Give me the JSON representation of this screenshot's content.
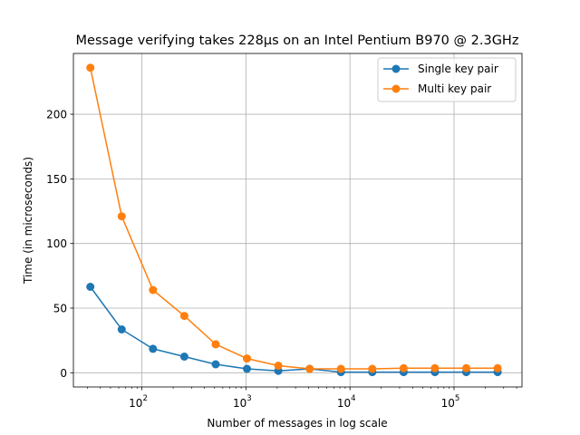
{
  "chart_data": {
    "type": "line",
    "title": "Message verifying takes 228µs on an Intel Pentium B970 @ 2.3GHz",
    "xlabel": "Number of messages in log scale",
    "ylabel": "Time (in microseconds)",
    "x_scale": "log",
    "xlim": [
      22,
      450000
    ],
    "ylim": [
      -11,
      247
    ],
    "x_ticks": [
      {
        "value": 100,
        "base": "10",
        "exp": "2"
      },
      {
        "value": 1000,
        "base": "10",
        "exp": "3"
      },
      {
        "value": 10000,
        "base": "10",
        "exp": "4"
      },
      {
        "value": 100000,
        "base": "10",
        "exp": "5"
      }
    ],
    "y_ticks": [
      0,
      50,
      100,
      150,
      200
    ],
    "grid": true,
    "legend_position": "top-right",
    "x": [
      32,
      64,
      128,
      256,
      512,
      1024,
      2048,
      4096,
      8192,
      16384,
      32768,
      65536,
      131072,
      262144
    ],
    "series": [
      {
        "name": "Single key pair",
        "color": "#1f77b4",
        "values": [
          66.5,
          33.5,
          18.5,
          12.5,
          6.5,
          3.0,
          1.5,
          3.0,
          0.5,
          0.5,
          0.5,
          0.5,
          0.5,
          0.5
        ]
      },
      {
        "name": "Multi key pair",
        "color": "#ff7f0e",
        "values": [
          236,
          121,
          64,
          44,
          22,
          11,
          5.5,
          3.0,
          3.0,
          3.0,
          3.5,
          3.5,
          3.5,
          3.5
        ]
      }
    ]
  }
}
